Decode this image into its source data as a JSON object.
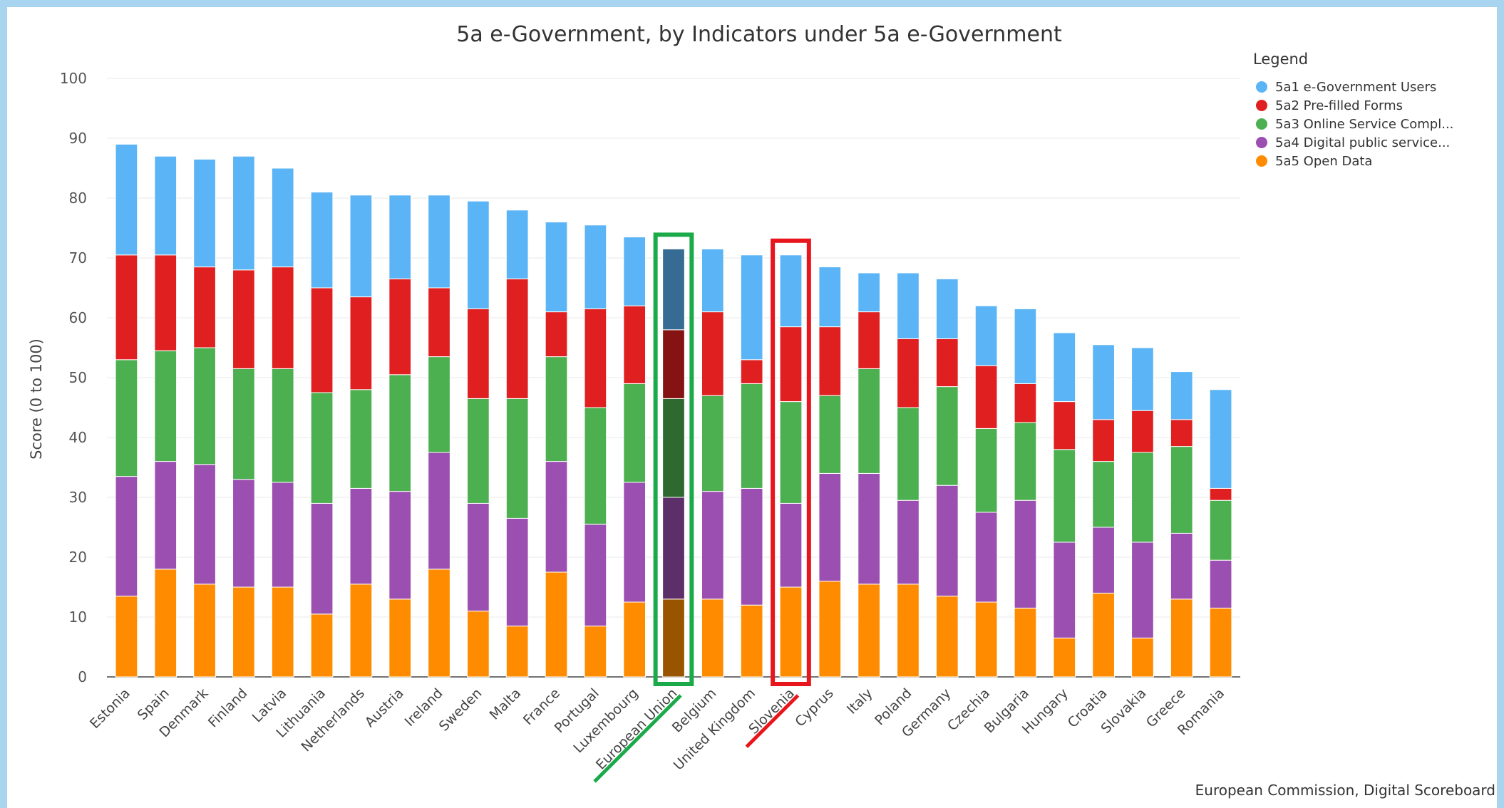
{
  "chart_data": {
    "type": "bar",
    "stacked": true,
    "title": "5a e-Government, by Indicators under 5a e-Government",
    "ylabel": "Score (0 to 100)",
    "xlabel": "",
    "ylim": [
      0,
      100
    ],
    "yticks": [
      0,
      10,
      20,
      30,
      40,
      50,
      60,
      70,
      80,
      90,
      100
    ],
    "grid": true,
    "legend_title": "Legend",
    "legend_position": "top-right",
    "source": "European Commission, Digital Scoreboard",
    "categories": [
      "Estonia",
      "Spain",
      "Denmark",
      "Finland",
      "Latvia",
      "Lithuania",
      "Netherlands",
      "Austria",
      "Ireland",
      "Sweden",
      "Malta",
      "France",
      "Portugal",
      "Luxembourg",
      "European Union",
      "Belgium",
      "United Kingdom",
      "Slovenia",
      "Cyprus",
      "Italy",
      "Poland",
      "Germany",
      "Czechia",
      "Bulgaria",
      "Hungary",
      "Croatia",
      "Slovakia",
      "Greece",
      "Romania"
    ],
    "series": [
      {
        "name": "5a5 Open Data",
        "color": "#ff8c00",
        "values": [
          13.5,
          18,
          15.5,
          15,
          15,
          10.5,
          15.5,
          13,
          18,
          11,
          8.5,
          17.5,
          8.5,
          12.5,
          13,
          13,
          12,
          15,
          16,
          15.5,
          15.5,
          13.5,
          12.5,
          11.5,
          6.5,
          14,
          6.5,
          13,
          11.5
        ]
      },
      {
        "name": "5a4 Digital public service...",
        "color": "#9b4fb0",
        "values": [
          20,
          18,
          20,
          18,
          17.5,
          18.5,
          16,
          18,
          19.5,
          18,
          18,
          18.5,
          17,
          20,
          17,
          18,
          19.5,
          14,
          18,
          18.5,
          14,
          18.5,
          15,
          18,
          16,
          11,
          16,
          11,
          8
        ]
      },
      {
        "name": "5a3 Online Service Compl...",
        "color": "#4caf50",
        "values": [
          19.5,
          18.5,
          19.5,
          18.5,
          19,
          18.5,
          16.5,
          19.5,
          16,
          17.5,
          20,
          17.5,
          19.5,
          16.5,
          16.5,
          16,
          17.5,
          17,
          13,
          17.5,
          15.5,
          16.5,
          14,
          13,
          15.5,
          11,
          15,
          14.5,
          10
        ]
      },
      {
        "name": "5a2 Pre-filled Forms",
        "color": "#e02020",
        "values": [
          17.5,
          16,
          13.5,
          16.5,
          17,
          17.5,
          15.5,
          16,
          11.5,
          15,
          20,
          7.5,
          16.5,
          13,
          11.5,
          14,
          4,
          12.5,
          11.5,
          9.5,
          11.5,
          8,
          10.5,
          6.5,
          8,
          7,
          7,
          4.5,
          2
        ]
      },
      {
        "name": "5a1 e-Government Users",
        "color": "#5ab4f5",
        "values": [
          18.5,
          16.5,
          18,
          19,
          16.5,
          16,
          17,
          14,
          15.5,
          18,
          11.5,
          15,
          14,
          11.5,
          13.5,
          10.5,
          17.5,
          12,
          10,
          6.5,
          11,
          10,
          10,
          12.5,
          11.5,
          12.5,
          10.5,
          8,
          16.5
        ]
      }
    ],
    "legend_order": [
      "5a1 e-Government Users",
      "5a2 Pre-filled Forms",
      "5a3 Online Service Compl...",
      "5a4 Digital public service...",
      "5a5 Open Data"
    ],
    "highlights": [
      {
        "category": "European Union",
        "color": "#1aaa4a"
      },
      {
        "category": "Slovenia",
        "color": "#e8161c"
      }
    ]
  }
}
